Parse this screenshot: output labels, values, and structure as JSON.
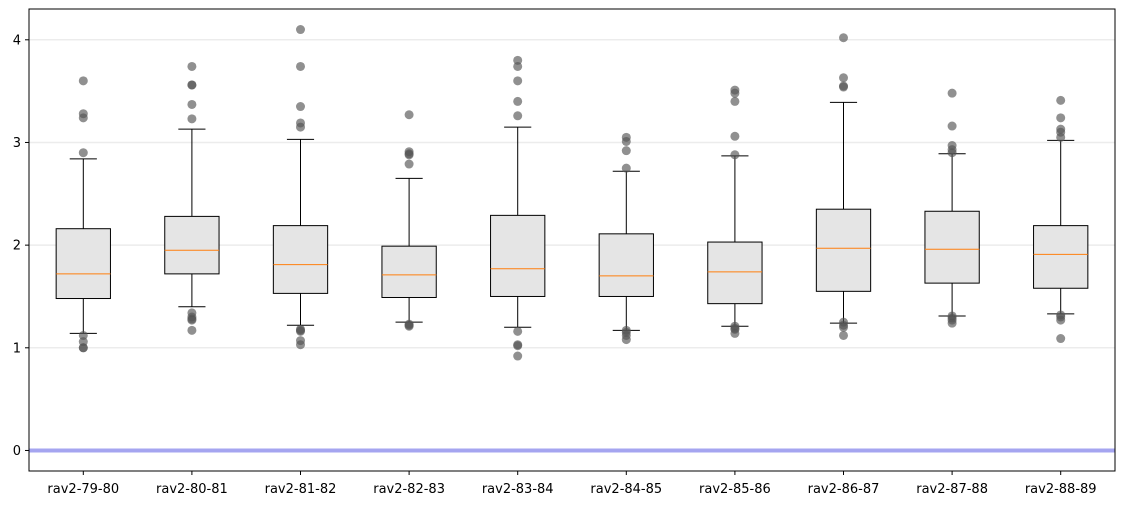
{
  "chart_data": {
    "type": "box",
    "title": "",
    "xlabel": "",
    "ylabel": "",
    "ylim": [
      -0.2,
      4.3
    ],
    "yticks": [
      0,
      1,
      2,
      3,
      4
    ],
    "ytick_labels": [
      "0",
      "1",
      "2",
      "3",
      "4"
    ],
    "grid": "horizontal",
    "reference_line": {
      "y": 0,
      "color": "#a5a5f0"
    },
    "colors": {
      "box_fill": "#e5e5e5",
      "median": "#ff7f0e",
      "outlier": "#555555",
      "grid": "#ececec"
    },
    "categories": [
      "rav2-79-80",
      "rav2-80-81",
      "rav2-81-82",
      "rav2-82-83",
      "rav2-83-84",
      "rav2-84-85",
      "rav2-85-86",
      "rav2-86-87",
      "rav2-87-88",
      "rav2-88-89"
    ],
    "boxes": [
      {
        "label": "rav2-79-80",
        "whisker_low": 1.14,
        "q1": 1.48,
        "median": 1.72,
        "q3": 2.16,
        "whisker_high": 2.84,
        "outliers": [
          3.6,
          3.28,
          3.24,
          2.9,
          1.12,
          1.06,
          1.0,
          1.0
        ]
      },
      {
        "label": "rav2-80-81",
        "whisker_low": 1.4,
        "q1": 1.72,
        "median": 1.95,
        "q3": 2.28,
        "whisker_high": 3.13,
        "outliers": [
          3.74,
          3.56,
          3.56,
          3.37,
          3.23,
          1.34,
          1.3,
          1.28,
          1.27,
          1.17
        ]
      },
      {
        "label": "rav2-81-82",
        "whisker_low": 1.22,
        "q1": 1.53,
        "median": 1.81,
        "q3": 2.19,
        "whisker_high": 3.03,
        "outliers": [
          4.1,
          3.74,
          3.35,
          3.19,
          3.15,
          1.18,
          1.17,
          1.16,
          1.07,
          1.03
        ]
      },
      {
        "label": "rav2-82-83",
        "whisker_low": 1.25,
        "q1": 1.49,
        "median": 1.71,
        "q3": 1.99,
        "whisker_high": 2.65,
        "outliers": [
          3.27,
          2.91,
          2.89,
          2.88,
          2.79,
          1.23,
          1.22,
          1.21
        ]
      },
      {
        "label": "rav2-83-84",
        "whisker_low": 1.2,
        "q1": 1.5,
        "median": 1.77,
        "q3": 2.29,
        "whisker_high": 3.15,
        "outliers": [
          3.8,
          3.74,
          3.6,
          3.4,
          3.26,
          1.16,
          1.03,
          1.02,
          0.92
        ]
      },
      {
        "label": "rav2-84-85",
        "whisker_low": 1.17,
        "q1": 1.5,
        "median": 1.7,
        "q3": 2.11,
        "whisker_high": 2.72,
        "outliers": [
          3.05,
          3.01,
          2.92,
          2.75,
          1.17,
          1.15,
          1.12,
          1.08
        ]
      },
      {
        "label": "rav2-85-86",
        "whisker_low": 1.21,
        "q1": 1.43,
        "median": 1.74,
        "q3": 2.03,
        "whisker_high": 2.87,
        "outliers": [
          3.51,
          3.48,
          3.4,
          3.06,
          2.88,
          1.21,
          1.19,
          1.18,
          1.14
        ]
      },
      {
        "label": "rav2-86-87",
        "whisker_low": 1.24,
        "q1": 1.55,
        "median": 1.97,
        "q3": 2.35,
        "whisker_high": 3.39,
        "outliers": [
          4.02,
          3.63,
          3.55,
          3.54,
          1.25,
          1.22,
          1.2,
          1.12
        ]
      },
      {
        "label": "rav2-87-88",
        "whisker_low": 1.31,
        "q1": 1.63,
        "median": 1.96,
        "q3": 2.33,
        "whisker_high": 2.89,
        "outliers": [
          3.48,
          3.16,
          2.97,
          2.93,
          2.9,
          1.31,
          1.29,
          1.27,
          1.24
        ]
      },
      {
        "label": "rav2-88-89",
        "whisker_low": 1.33,
        "q1": 1.58,
        "median": 1.91,
        "q3": 2.19,
        "whisker_high": 3.02,
        "outliers": [
          3.41,
          3.24,
          3.13,
          3.1,
          3.05,
          1.32,
          1.3,
          1.27,
          1.09
        ]
      }
    ]
  }
}
